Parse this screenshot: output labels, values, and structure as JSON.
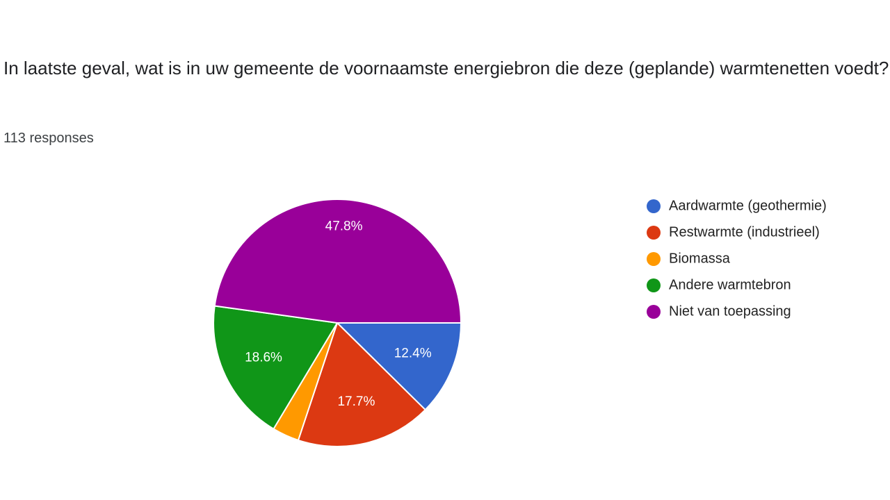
{
  "chart_data": {
    "type": "pie",
    "title": "In laatste geval, wat is in uw gemeente de voornaamste energiebron die deze (geplande) warmtenetten voedt?",
    "subtitle": "113 responses",
    "categories": [
      "Aardwarmte (geothermie)",
      "Restwarmte (industrieel)",
      "Biomassa",
      "Andere warmtebron",
      "Niet van toepassing"
    ],
    "values": [
      12.4,
      17.7,
      3.5,
      18.6,
      47.8
    ],
    "value_labels": [
      "12.4%",
      "17.7%",
      null,
      "18.6%",
      "47.8%"
    ],
    "colors": [
      "#3366cc",
      "#dc3912",
      "#ff9900",
      "#109618",
      "#990099"
    ],
    "legend": "right"
  }
}
